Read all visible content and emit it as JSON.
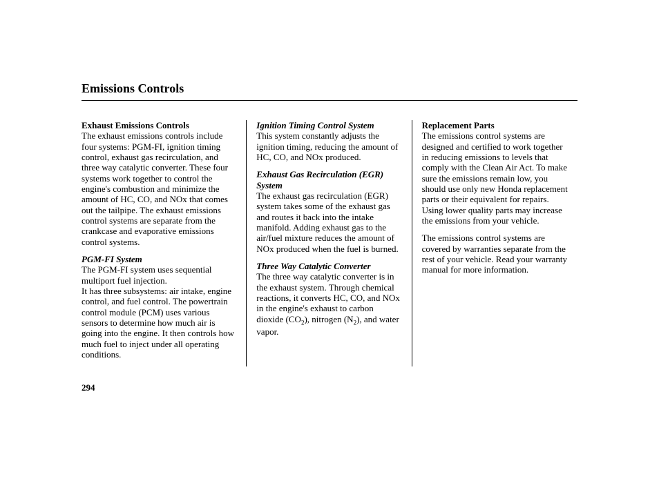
{
  "title": "Emissions Controls",
  "page_number": "294",
  "col1": {
    "h1": "Exhaust Emissions Controls",
    "p1": "The exhaust emissions controls include four systems: PGM-FI, ignition timing control, exhaust gas recirculation, and three way catalytic converter. These four systems work together to control the engine's combustion and minimize the amount of HC, CO, and NOx that comes out the tailpipe. The exhaust emissions control systems are separate from the crankcase and evaporative emissions control systems.",
    "h2": "PGM-FI System",
    "p2a": "The PGM-FI system uses sequential multiport fuel injection.",
    "p2b": "It has three subsystems: air intake, engine control, and fuel control. The powertrain control module (PCM) uses various sensors to determine how much air is going into the engine. It then controls how much fuel to inject under all operating conditions."
  },
  "col2": {
    "h1": "Ignition Timing Control System",
    "p1": "This system constantly adjusts the ignition timing, reducing the amount of HC, CO, and NOx produced.",
    "h2": "Exhaust Gas Recirculation (EGR) System",
    "p2": "The exhaust gas recirculation (EGR) system takes some of the exhaust gas and routes it back into the intake manifold. Adding exhaust gas to the air/fuel mixture reduces the amount of NOx produced when the fuel is burned.",
    "h3": "Three Way Catalytic Converter",
    "p3a": "The three way catalytic converter is in the exhaust system. Through chemical reactions, it converts HC, CO, and NOx in the engine's exhaust to carbon dioxide (CO",
    "p3b": "), nitrogen (N",
    "p3c": "), and water vapor."
  },
  "col3": {
    "h1": "Replacement Parts",
    "p1": "The emissions control systems are designed and certified to work together in reducing emissions to levels that comply with the Clean Air Act. To make sure the emissions remain low, you should use only new Honda replacement parts or their equivalent for repairs. Using lower quality parts may increase the emissions from your vehicle.",
    "p2": "The emissions control systems are covered by warranties separate from the rest of your vehicle. Read your warranty manual for more information."
  },
  "subs": {
    "two": "2"
  }
}
